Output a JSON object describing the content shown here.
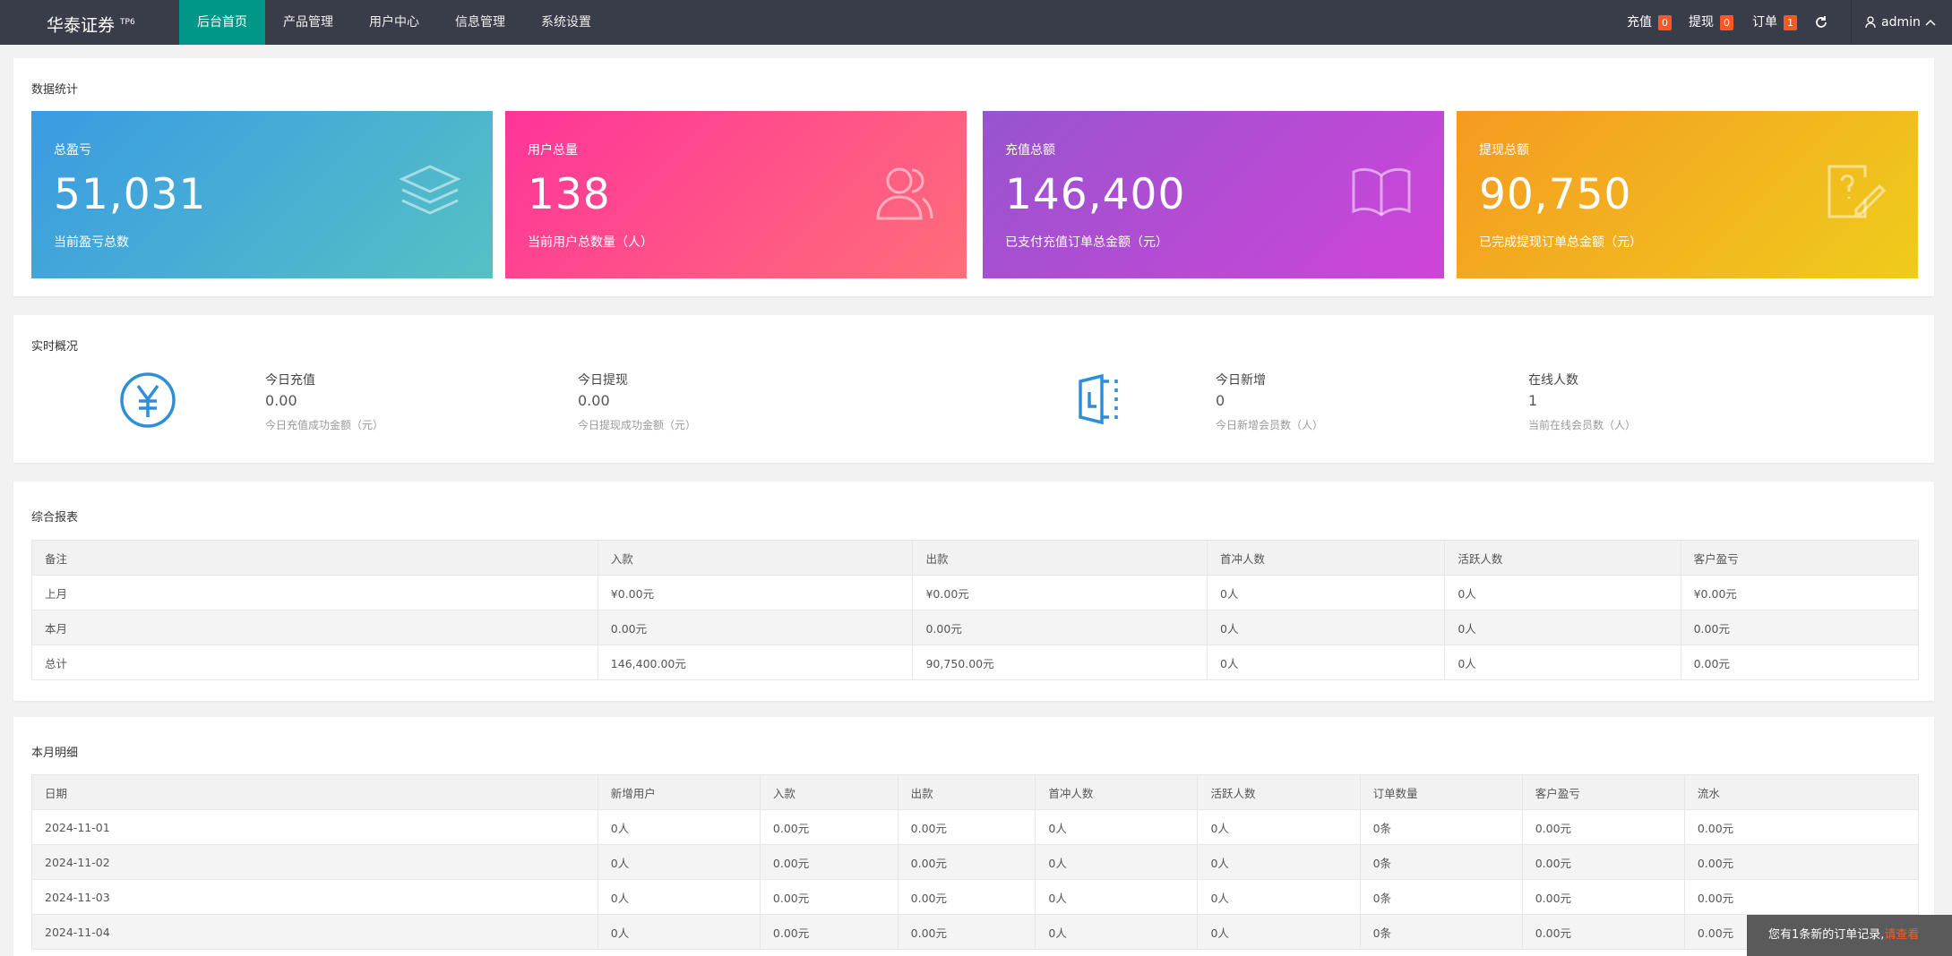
{
  "nav": {
    "logo": "华泰证券",
    "logo_tag": "TP6",
    "tabs": [
      "后台首页",
      "产品管理",
      "用户中心",
      "信息管理",
      "系统设置"
    ],
    "recharge": {
      "label": "充值",
      "count": 0
    },
    "withdraw": {
      "label": "提现",
      "count": 0
    },
    "orders": {
      "label": "订单",
      "count": 1
    },
    "user": "admin"
  },
  "stats": {
    "title": "数据统计",
    "cards": [
      {
        "label": "总盈亏",
        "value": "51,031",
        "desc": "当前盈亏总数"
      },
      {
        "label": "用户总量",
        "value": "138",
        "desc": "当前用户总数量（人）"
      },
      {
        "label": "充值总额",
        "value": "146,400",
        "desc": "已支付充值订单总金额（元）"
      },
      {
        "label": "提现总额",
        "value": "90,750",
        "desc": "已完成提现订单总金额（元）"
      }
    ]
  },
  "realtime": {
    "title": "实时概况",
    "items": [
      {
        "label": "今日充值",
        "value": "0.00",
        "desc": "今日充值成功金额（元）"
      },
      {
        "label": "今日提现",
        "value": "0.00",
        "desc": "今日提现成功金额（元）"
      },
      {
        "label": "今日新增",
        "value": 0,
        "desc": "今日新增会员数（人）"
      },
      {
        "label": "在线人数",
        "value": 1,
        "desc": "当前在线会员数（人）"
      }
    ]
  },
  "report": {
    "title": "综合报表",
    "headers": [
      "备注",
      "入款",
      "出款",
      "首冲人数",
      "活跃人数",
      "客户盈亏"
    ],
    "rows": [
      [
        "上月",
        "¥0.00元",
        "¥0.00元",
        "0人",
        "0人",
        "¥0.00元"
      ],
      [
        "本月",
        "0.00元",
        "0.00元",
        "0人",
        "0人",
        "0.00元"
      ],
      [
        "总计",
        "146,400.00元",
        "90,750.00元",
        "0人",
        "0人",
        "0.00元"
      ]
    ]
  },
  "monthly": {
    "title": "本月明细",
    "headers": [
      "日期",
      "新增用户",
      "入款",
      "出款",
      "首冲人数",
      "活跃人数",
      "订单数量",
      "客户盈亏",
      "流水"
    ],
    "rows": [
      [
        "2024-11-01",
        "0人",
        "0.00元",
        "0.00元",
        "0人",
        "0人",
        "0条",
        "0.00元",
        "0.00元"
      ],
      [
        "2024-11-02",
        "0人",
        "0.00元",
        "0.00元",
        "0人",
        "0人",
        "0条",
        "0.00元",
        "0.00元"
      ],
      [
        "2024-11-03",
        "0人",
        "0.00元",
        "0.00元",
        "0人",
        "0人",
        "0条",
        "0.00元",
        "0.00元"
      ],
      [
        "2024-11-04",
        "0人",
        "0.00元",
        "0.00元",
        "0人",
        "0人",
        "0条",
        "0.00元",
        "0.00元"
      ]
    ]
  },
  "notice": {
    "text": "您有1条新的订单记录,",
    "link": "请查看"
  }
}
